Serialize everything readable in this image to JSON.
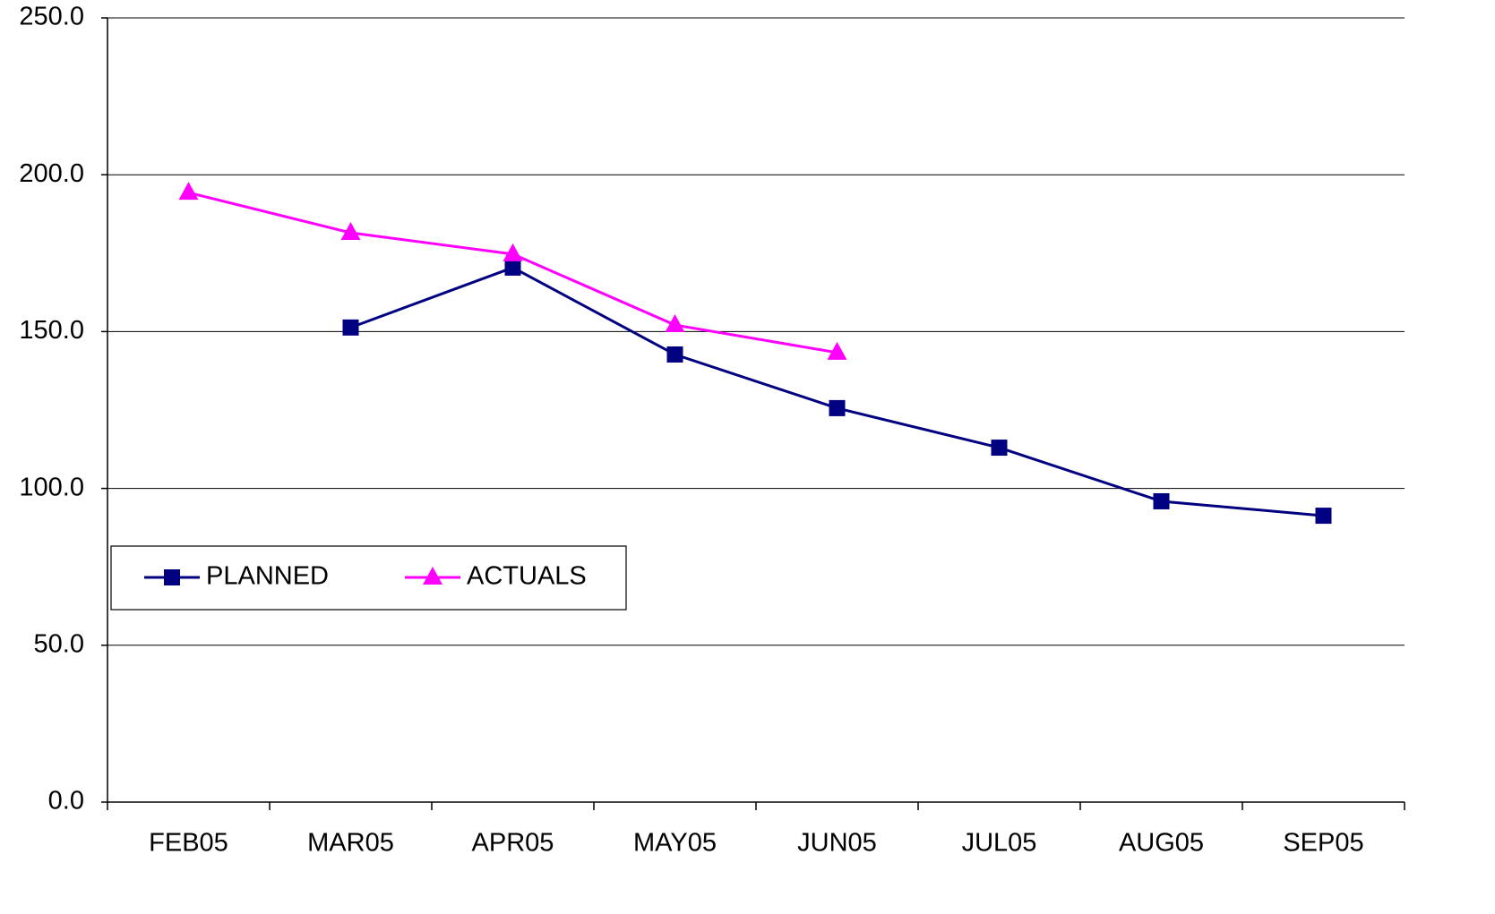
{
  "chart_data": {
    "type": "line",
    "categories": [
      "FEB05",
      "MAR05",
      "APR05",
      "MAY05",
      "JUN05",
      "JUL05",
      "AUG05",
      "SEP05"
    ],
    "series": [
      {
        "name": "PLANNED",
        "color": "#000080",
        "marker": "square",
        "values": [
          null,
          151.3,
          170.4,
          142.7,
          125.6,
          113.0,
          95.9,
          91.3
        ]
      },
      {
        "name": "ACTUALS",
        "color": "#ff00ff",
        "marker": "triangle",
        "values": [
          194.3,
          181.5,
          174.7,
          152.1,
          143.3,
          null,
          null,
          null
        ]
      }
    ],
    "ylim": [
      0,
      250
    ],
    "yticks": [
      {
        "value": 0,
        "label": "0.0"
      },
      {
        "value": 50,
        "label": "50.0"
      },
      {
        "value": 100,
        "label": "100.0"
      },
      {
        "value": 150,
        "label": "150.0"
      },
      {
        "value": 200,
        "label": "200.0"
      },
      {
        "value": 250,
        "label": "250.0"
      }
    ],
    "grid": true,
    "legend": "left"
  }
}
